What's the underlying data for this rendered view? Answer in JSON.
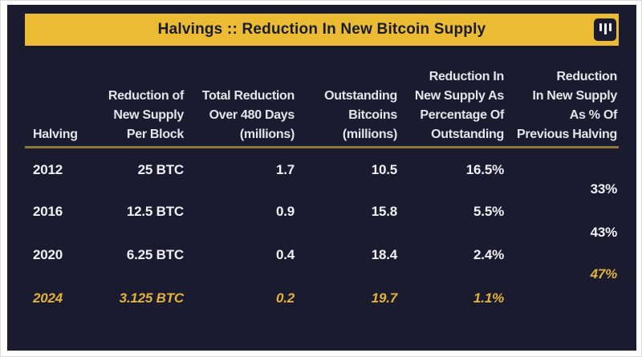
{
  "title_bar": {
    "title": "Halvings :: Reduction In New Bitcoin Supply",
    "logo_icon": "three-vertical-bars-logo"
  },
  "colors": {
    "panel_background": "#1B1B30",
    "accent_yellow": "#EABB33",
    "highlight_text": "#E3B339",
    "divider_gold": "#8D7A3B",
    "header_text": "#E4E4EB",
    "value_text": "#F0F0F5"
  },
  "table": {
    "header": {
      "col1": "Halving",
      "col2": "Reduction of\nNew Supply\nPer Block",
      "col3": "Total Reduction\nOver 480 Days\n(millions)",
      "col4": "Outstanding\nBitcoins\n(millions)",
      "col5": "Reduction In\nNew Supply As\nPercentage Of\nOutstanding",
      "col6": "Reduction\nIn New Supply\nAs % Of\nPrevious Halving"
    },
    "rows": [
      {
        "cells": [
          "2012",
          "25 BTC",
          "1.7",
          "10.5",
          "16.5%",
          ""
        ],
        "highlight": false
      },
      {
        "cells": [
          "",
          "",
          "",
          "",
          "",
          "33%"
        ],
        "highlight": false
      },
      {
        "cells": [
          "2016",
          "12.5 BTC",
          "0.9",
          "15.8",
          "5.5%",
          ""
        ],
        "highlight": false
      },
      {
        "cells": [
          "",
          "",
          "",
          "",
          "",
          "43%"
        ],
        "highlight": false
      },
      {
        "cells": [
          "2020",
          "6.25 BTC",
          "0.4",
          "18.4",
          "2.4%",
          ""
        ],
        "highlight": false
      },
      {
        "cells": [
          "",
          "",
          "",
          "",
          "",
          "47%"
        ],
        "highlight": true
      },
      {
        "cells": [
          "2024",
          "3.125 BTC",
          "0.2",
          "19.7",
          "1.1%",
          ""
        ],
        "highlight": true
      }
    ]
  },
  "chart_data": {
    "type": "table",
    "title": "Halvings :: Reduction In New Bitcoin Supply",
    "columns": [
      "Halving",
      "Reduction of New Supply Per Block",
      "Total Reduction Over 480 Days (millions)",
      "Outstanding Bitcoins (millions)",
      "Reduction In New Supply As Percentage Of Outstanding",
      "Reduction In New Supply As % Of Previous Halving"
    ],
    "rows": [
      {
        "halving": "2012",
        "reduction_per_block_btc": 25,
        "total_reduction_480d_millions": 1.7,
        "outstanding_bitcoins_millions": 10.5,
        "reduction_pct_of_outstanding": "16.5%"
      },
      {
        "halving": "2016",
        "reduction_per_block_btc": 12.5,
        "total_reduction_480d_millions": 0.9,
        "outstanding_bitcoins_millions": 15.8,
        "reduction_pct_of_outstanding": "5.5%"
      },
      {
        "halving": "2020",
        "reduction_per_block_btc": 6.25,
        "total_reduction_480d_millions": 0.4,
        "outstanding_bitcoins_millions": 18.4,
        "reduction_pct_of_outstanding": "2.4%"
      },
      {
        "halving": "2024",
        "reduction_per_block_btc": 3.125,
        "total_reduction_480d_millions": 0.2,
        "outstanding_bitcoins_millions": 19.7,
        "reduction_pct_of_outstanding": "1.1%"
      }
    ],
    "interstitial_values": [
      {
        "between": [
          "2012",
          "2016"
        ],
        "value": "33%"
      },
      {
        "between": [
          "2016",
          "2020"
        ],
        "value": "43%"
      },
      {
        "between": [
          "2020",
          "2024"
        ],
        "value": "47%"
      }
    ],
    "layout_hints": {
      "value_alignment": "right",
      "highlighted_rows": [
        "2024"
      ],
      "highlighted_interstitial": "47%"
    }
  }
}
